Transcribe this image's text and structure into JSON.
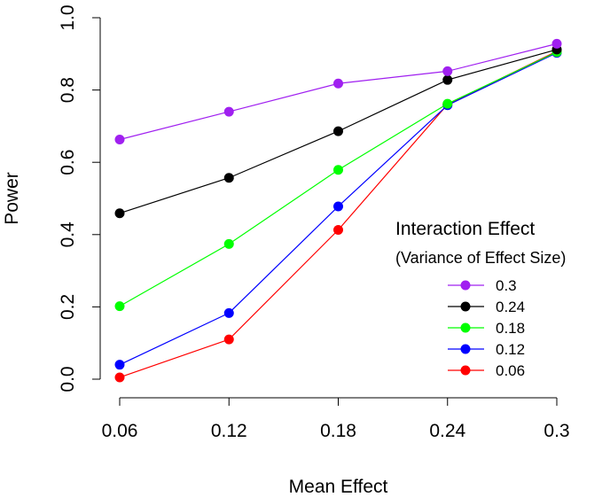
{
  "chart_data": {
    "type": "line",
    "title": "",
    "xlabel": "Mean Effect",
    "ylabel": "Power",
    "x": [
      0.06,
      0.12,
      0.18,
      0.24,
      0.3
    ],
    "x_tick_labels": [
      "0.06",
      "0.12",
      "0.18",
      "0.24",
      "0.3"
    ],
    "ylim": [
      0.0,
      1.0
    ],
    "y_ticks": [
      0.0,
      0.2,
      0.4,
      0.6,
      0.8,
      1.0
    ],
    "y_tick_labels": [
      "0.0",
      "0.2",
      "0.4",
      "0.6",
      "0.8",
      "1.0"
    ],
    "grid": false,
    "legend": {
      "title": "Interaction Effect",
      "subtitle": "(Variance of Effect Size)",
      "placement": "right"
    },
    "series": [
      {
        "name": "0.3",
        "color": "#a020f0",
        "values": [
          0.663,
          0.74,
          0.818,
          0.852,
          0.928
        ]
      },
      {
        "name": "0.24",
        "color": "#000000",
        "values": [
          0.459,
          0.557,
          0.686,
          0.828,
          0.912
        ]
      },
      {
        "name": "0.18",
        "color": "#00ff00",
        "values": [
          0.202,
          0.374,
          0.579,
          0.762,
          0.905
        ]
      },
      {
        "name": "0.12",
        "color": "#0000ff",
        "values": [
          0.04,
          0.183,
          0.478,
          0.758,
          0.903
        ]
      },
      {
        "name": "0.06",
        "color": "#ff0000",
        "values": [
          0.005,
          0.11,
          0.413,
          0.76,
          0.907
        ]
      }
    ]
  }
}
